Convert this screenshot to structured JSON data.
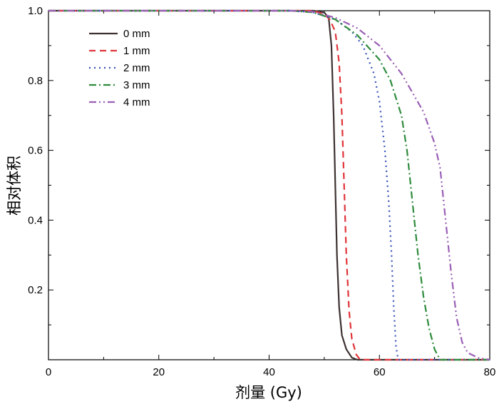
{
  "chart_data": {
    "type": "line",
    "xlabel": "剂量 (Gy)",
    "ylabel": "相对体积",
    "xlim": [
      0,
      80
    ],
    "ylim": [
      0,
      1.0
    ],
    "x_ticks": [
      0,
      20,
      40,
      60,
      80
    ],
    "y_ticks": [
      0.2,
      0.4,
      0.6,
      0.8,
      1.0
    ],
    "y_tick_labels": [
      "0.2",
      "0.4",
      "0.6",
      "0.8",
      "1.0"
    ],
    "legend_position": "top-left",
    "grid": false,
    "series": [
      {
        "name": "0 mm",
        "color": "#3d3131",
        "dash": "solid",
        "points": [
          [
            0,
            1.0
          ],
          [
            48,
            1.0
          ],
          [
            50,
            0.995
          ],
          [
            50.8,
            0.98
          ],
          [
            51.3,
            0.9
          ],
          [
            51.7,
            0.7
          ],
          [
            52.0,
            0.5
          ],
          [
            52.3,
            0.3
          ],
          [
            52.7,
            0.15
          ],
          [
            53.2,
            0.07
          ],
          [
            54.0,
            0.03
          ],
          [
            55.0,
            0.006
          ],
          [
            56.0,
            0.0
          ],
          [
            80,
            0.0
          ]
        ]
      },
      {
        "name": "1 mm",
        "color": "#e0343a",
        "dash": "dashed",
        "points": [
          [
            0,
            1.0
          ],
          [
            48,
            1.0
          ],
          [
            50,
            0.99
          ],
          [
            51,
            0.975
          ],
          [
            52,
            0.94
          ],
          [
            52.7,
            0.85
          ],
          [
            53.2,
            0.7
          ],
          [
            53.6,
            0.5
          ],
          [
            54.0,
            0.3
          ],
          [
            54.5,
            0.14
          ],
          [
            55.0,
            0.06
          ],
          [
            55.8,
            0.015
          ],
          [
            56.5,
            0.0
          ],
          [
            80,
            0.0
          ]
        ]
      },
      {
        "name": "2 mm",
        "color": "#3550b8",
        "dash": "dotted",
        "points": [
          [
            0,
            1.0
          ],
          [
            44,
            1.0
          ],
          [
            48,
            0.995
          ],
          [
            52,
            0.975
          ],
          [
            55,
            0.94
          ],
          [
            57,
            0.9
          ],
          [
            59,
            0.82
          ],
          [
            60,
            0.74
          ],
          [
            61,
            0.6
          ],
          [
            61.7,
            0.45
          ],
          [
            62.2,
            0.3
          ],
          [
            62.6,
            0.15
          ],
          [
            63.0,
            0.04
          ],
          [
            63.4,
            0.0
          ],
          [
            80,
            0.0
          ]
        ]
      },
      {
        "name": "3 mm",
        "color": "#2e8b3c",
        "dash": "dashdot",
        "points": [
          [
            0,
            1.0
          ],
          [
            44,
            1.0
          ],
          [
            48,
            0.995
          ],
          [
            52,
            0.975
          ],
          [
            56,
            0.93
          ],
          [
            60,
            0.86
          ],
          [
            62,
            0.8
          ],
          [
            64,
            0.7
          ],
          [
            65,
            0.6
          ],
          [
            66,
            0.45
          ],
          [
            67,
            0.3
          ],
          [
            68,
            0.18
          ],
          [
            69,
            0.09
          ],
          [
            70,
            0.03
          ],
          [
            71,
            0.0
          ],
          [
            80,
            0.0
          ]
        ]
      },
      {
        "name": "4 mm",
        "color": "#9a5fb5",
        "dash": "dashdotdot",
        "points": [
          [
            0,
            1.0
          ],
          [
            44,
            1.0
          ],
          [
            48,
            0.997
          ],
          [
            52,
            0.98
          ],
          [
            56,
            0.95
          ],
          [
            60,
            0.9
          ],
          [
            64,
            0.82
          ],
          [
            68,
            0.71
          ],
          [
            70,
            0.62
          ],
          [
            71,
            0.55
          ],
          [
            72,
            0.4
          ],
          [
            73,
            0.25
          ],
          [
            74,
            0.12
          ],
          [
            75,
            0.05
          ],
          [
            76,
            0.02
          ],
          [
            78,
            0.005
          ],
          [
            80,
            0.0
          ]
        ]
      }
    ]
  }
}
